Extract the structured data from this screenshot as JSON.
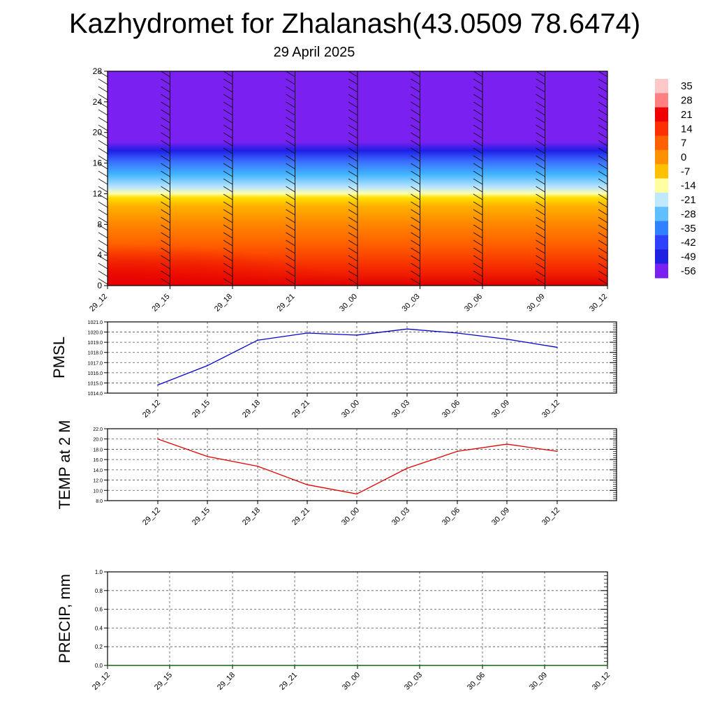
{
  "title": "Kazhydromet for Zhalanash(43.0509 78.6474)",
  "subtitle": "29 April 2025",
  "time_labels": [
    "29_12",
    "29_15",
    "29_18",
    "29_21",
    "30_00",
    "30_03",
    "30_06",
    "30_09",
    "30_12"
  ],
  "colorbar": {
    "labels": [
      "35",
      "28",
      "21",
      "14",
      "7",
      "0",
      "-7",
      "-14",
      "-21",
      "-28",
      "-35",
      "-42",
      "-49",
      "-56"
    ]
  },
  "chart_data": [
    {
      "type": "heatmap",
      "description_of_field": "temperature vs height with wind barbs",
      "x": [
        "29_12",
        "29_15",
        "29_18",
        "29_21",
        "30_00",
        "30_03",
        "30_06",
        "30_09",
        "30_12"
      ],
      "y_ticks": [
        "0",
        "4",
        "8",
        "12",
        "16",
        "20",
        "24",
        "28"
      ],
      "ylim": [
        0,
        28
      ],
      "color_range": [
        -56,
        35
      ]
    },
    {
      "type": "line",
      "ylabel": "PMSL",
      "x": [
        "29_12",
        "29_15",
        "29_18",
        "29_21",
        "30_00",
        "30_03",
        "30_06",
        "30_09",
        "30_12"
      ],
      "values": [
        1014.8,
        1016.7,
        1019.2,
        1019.9,
        1019.7,
        1020.3,
        1019.9,
        1019.3,
        1018.5
      ],
      "ylim": [
        1014.0,
        1021.0
      ],
      "y_ticks": [
        "1014.0",
        "1015.0",
        "1016.0",
        "1017.0",
        "1018.0",
        "1019.0",
        "1020.0",
        "1021.0"
      ],
      "color": "#0000cc",
      "grid": true
    },
    {
      "type": "line",
      "ylabel": "TEMP at 2 M",
      "x": [
        "29_12",
        "29_15",
        "29_18",
        "29_21",
        "30_00",
        "30_03",
        "30_06",
        "30_09",
        "30_12"
      ],
      "values": [
        20.0,
        16.6,
        14.7,
        11.1,
        9.3,
        14.3,
        17.6,
        19.0,
        17.6
      ],
      "ylim": [
        8.0,
        22.0
      ],
      "y_ticks": [
        "8.0",
        "10.0",
        "12.0",
        "14.0",
        "16.0",
        "18.0",
        "20.0",
        "22.0"
      ],
      "color": "#e00000",
      "grid": true
    },
    {
      "type": "line",
      "ylabel": "PRECIP, mm",
      "x": [
        "29_12",
        "29_15",
        "29_18",
        "29_21",
        "30_00",
        "30_03",
        "30_06",
        "30_09",
        "30_12"
      ],
      "values": [
        0,
        0,
        0,
        0,
        0,
        0,
        0,
        0,
        0
      ],
      "ylim": [
        0.0,
        1.0
      ],
      "y_ticks": [
        "0.0",
        "0.2",
        "0.4",
        "0.6",
        "0.8",
        "1.0"
      ],
      "color": "#006400",
      "grid": true
    }
  ]
}
